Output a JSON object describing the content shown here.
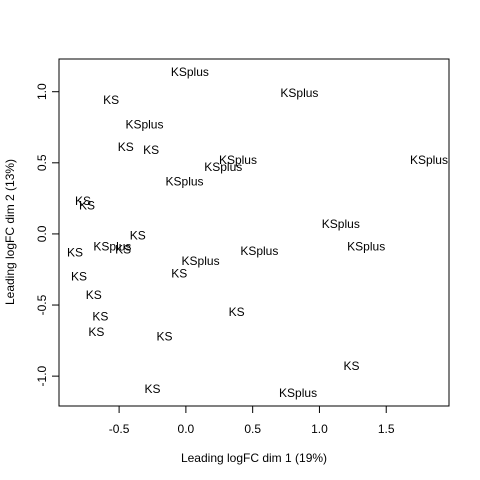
{
  "chart_data": {
    "type": "scatter",
    "title": "",
    "xlabel": "Leading logFC dim 1 (19%)",
    "ylabel": "Leading logFC dim 2 (13%)",
    "xlim": [
      -0.95,
      1.97
    ],
    "ylim": [
      -1.21,
      1.23
    ],
    "x_ticks": [
      -0.5,
      0.0,
      0.5,
      1.0,
      1.5
    ],
    "y_ticks": [
      -1.0,
      -0.5,
      0.0,
      0.5,
      1.0
    ],
    "x_tick_labels": [
      "-0.5",
      "0.0",
      "0.5",
      "1.0",
      "1.5"
    ],
    "y_tick_labels": [
      "-1.0",
      "-0.5",
      "0.0",
      "0.5",
      "1.0"
    ],
    "grid": false,
    "points": [
      {
        "label": "KSplus",
        "x": 0.03,
        "y": 1.14
      },
      {
        "label": "KSplus",
        "x": 0.85,
        "y": 0.99
      },
      {
        "label": "KS",
        "x": -0.56,
        "y": 0.94
      },
      {
        "label": "KSplus",
        "x": -0.31,
        "y": 0.77
      },
      {
        "label": "KS",
        "x": -0.45,
        "y": 0.61
      },
      {
        "label": "KS",
        "x": -0.26,
        "y": 0.59
      },
      {
        "label": "KSplus",
        "x": 0.39,
        "y": 0.52
      },
      {
        "label": "KSplus",
        "x": 1.82,
        "y": 0.52
      },
      {
        "label": "KSplus",
        "x": 0.28,
        "y": 0.47
      },
      {
        "label": "KSplus",
        "x": -0.01,
        "y": 0.37
      },
      {
        "label": "KS",
        "x": -0.77,
        "y": 0.23
      },
      {
        "label": "KS",
        "x": -0.74,
        "y": 0.2
      },
      {
        "label": "KSplus",
        "x": 1.16,
        "y": 0.07
      },
      {
        "label": "KS",
        "x": -0.36,
        "y": -0.01
      },
      {
        "label": "KSplus",
        "x": -0.55,
        "y": -0.09
      },
      {
        "label": "KS",
        "x": -0.47,
        "y": -0.11
      },
      {
        "label": "KSplus",
        "x": 1.35,
        "y": -0.09
      },
      {
        "label": "KS",
        "x": -0.83,
        "y": -0.13
      },
      {
        "label": "KSplus",
        "x": 0.55,
        "y": -0.12
      },
      {
        "label": "KSplus",
        "x": 0.11,
        "y": -0.19
      },
      {
        "label": "KS",
        "x": -0.05,
        "y": -0.28
      },
      {
        "label": "KS",
        "x": -0.8,
        "y": -0.3
      },
      {
        "label": "KS",
        "x": -0.69,
        "y": -0.43
      },
      {
        "label": "KS",
        "x": 0.38,
        "y": -0.55
      },
      {
        "label": "KS",
        "x": -0.64,
        "y": -0.58
      },
      {
        "label": "KS",
        "x": -0.67,
        "y": -0.69
      },
      {
        "label": "KS",
        "x": -0.16,
        "y": -0.72
      },
      {
        "label": "KS",
        "x": 1.24,
        "y": -0.93
      },
      {
        "label": "KS",
        "x": -0.25,
        "y": -1.09
      },
      {
        "label": "KSplus",
        "x": 0.84,
        "y": -1.12
      }
    ]
  }
}
